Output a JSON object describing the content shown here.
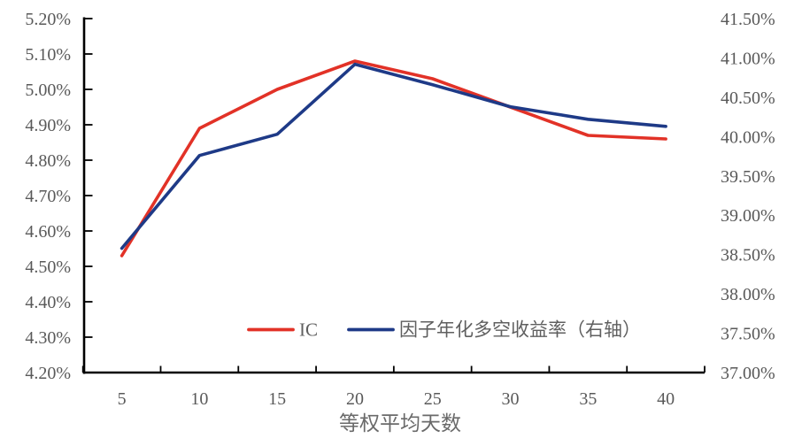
{
  "chart_data": {
    "type": "line",
    "title": "",
    "xlabel": "等权平均天数",
    "ylabel": "",
    "x": [
      5,
      10,
      15,
      20,
      25,
      30,
      35,
      40
    ],
    "x_tick_labels": [
      "5",
      "10",
      "15",
      "20",
      "25",
      "30",
      "35",
      "40"
    ],
    "series": [
      {
        "name": "IC",
        "axis": "left",
        "color": "#e23227",
        "values": [
          4.53,
          4.89,
          5.0,
          5.08,
          5.03,
          4.95,
          4.87,
          4.86
        ]
      },
      {
        "name": "因子年化多空收益率（右轴）",
        "axis": "right",
        "color": "#1e3a87",
        "values": [
          38.58,
          39.76,
          40.03,
          40.92,
          40.66,
          40.38,
          40.22,
          40.13
        ]
      }
    ],
    "left_axis": {
      "min": 4.2,
      "max": 5.2,
      "step": 0.1,
      "tick_labels": [
        "5.20%",
        "5.10%",
        "5.00%",
        "4.90%",
        "4.80%",
        "4.70%",
        "4.60%",
        "4.50%",
        "4.40%",
        "4.30%",
        "4.20%"
      ]
    },
    "right_axis": {
      "min": 37.0,
      "max": 41.5,
      "step": 0.5,
      "tick_labels": [
        "41.50%",
        "41.00%",
        "40.50%",
        "40.00%",
        "39.50%",
        "39.00%",
        "38.50%",
        "38.00%",
        "37.50%",
        "37.00%"
      ]
    },
    "legend": {
      "position": "bottom-inside",
      "entries": [
        "IC",
        "因子年化多空收益率（右轴）"
      ]
    },
    "grid": false,
    "colors": {
      "axis_line": "#000000",
      "tick_label": "#595959",
      "background": "#ffffff"
    }
  }
}
